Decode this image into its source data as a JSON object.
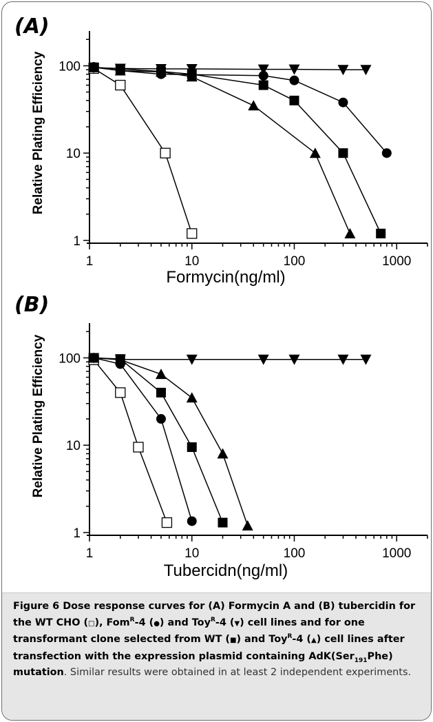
{
  "chart_data": [
    {
      "type": "line",
      "panel_label": "(A)",
      "xlabel": "Formycin(ng/ml)",
      "ylabel": "Relative Plating Efficiency",
      "xscale": "log",
      "yscale": "log",
      "xlim": [
        1,
        2000
      ],
      "ylim": [
        1,
        250
      ],
      "xticks": [
        1,
        10,
        100,
        1000
      ],
      "xtick_labels": [
        "1",
        "10",
        "100",
        "1000"
      ],
      "yticks": [
        1,
        10,
        100
      ],
      "ytick_labels": [
        "1",
        "10",
        "100"
      ],
      "grid": false,
      "series": [
        {
          "key": "wt",
          "marker": "square-open",
          "x": [
            1.1,
            2,
            5.5,
            10
          ],
          "y": [
            93,
            60,
            10,
            1.2
          ]
        },
        {
          "key": "fom",
          "marker": "circle",
          "x": [
            1.1,
            2,
            5,
            50,
            100,
            300,
            800
          ],
          "y": [
            97,
            88,
            80,
            77,
            68,
            38,
            10
          ]
        },
        {
          "key": "toy",
          "marker": "triangle-down",
          "x": [
            1.1,
            2,
            5,
            10,
            50,
            100,
            300,
            500
          ],
          "y": [
            95,
            93,
            92,
            92,
            91,
            91,
            90,
            90
          ]
        },
        {
          "key": "wt_transf",
          "marker": "square",
          "x": [
            1.1,
            2,
            5,
            10,
            50,
            100,
            300,
            700
          ],
          "y": [
            96,
            92,
            86,
            80,
            60,
            40,
            10,
            1.2
          ]
        },
        {
          "key": "toy_transf",
          "marker": "triangle-up",
          "x": [
            1.1,
            2,
            5,
            10,
            40,
            160,
            350
          ],
          "y": [
            96,
            88,
            85,
            75,
            35,
            10,
            1.2
          ]
        }
      ]
    },
    {
      "type": "line",
      "panel_label": "(B)",
      "xlabel": "Tubercidn(ng/ml)",
      "ylabel": "Relative Plating Efficiency",
      "xscale": "log",
      "yscale": "log",
      "xlim": [
        1,
        2000
      ],
      "ylim": [
        1,
        250
      ],
      "xticks": [
        1,
        10,
        100,
        1000
      ],
      "xtick_labels": [
        "1",
        "10",
        "100",
        "1000"
      ],
      "yticks": [
        1,
        10,
        100
      ],
      "ytick_labels": [
        "1",
        "10",
        "100"
      ],
      "grid": false,
      "series": [
        {
          "key": "wt",
          "marker": "square-open",
          "x": [
            1.1,
            2,
            3,
            5.7
          ],
          "y": [
            95,
            40,
            9.5,
            1.3
          ]
        },
        {
          "key": "fom",
          "marker": "circle",
          "x": [
            1.1,
            2,
            5,
            10
          ],
          "y": [
            100,
            85,
            20,
            1.35
          ]
        },
        {
          "key": "toy",
          "marker": "triangle-down",
          "x": [
            1.1,
            2,
            10,
            50,
            100,
            300,
            500
          ],
          "y": [
            100,
            96,
            96,
            96,
            96,
            96,
            96
          ]
        },
        {
          "key": "wt_transf",
          "marker": "square",
          "x": [
            1.1,
            2,
            5,
            10,
            20
          ],
          "y": [
            100,
            97,
            40,
            9.5,
            1.3
          ]
        },
        {
          "key": "toy_transf",
          "marker": "triangle-up",
          "x": [
            1.1,
            2,
            5,
            10,
            20,
            35
          ],
          "y": [
            100,
            95,
            65,
            35,
            8,
            1.2
          ]
        }
      ]
    }
  ],
  "caption": {
    "fig_label": "Figure 6",
    "t1": " Dose response curves for (A) Formycin A and (B) tubercidin for the WT CHO (",
    "sym_wt": "□",
    "t2": "), Fom",
    "sup1": "R",
    "t3": "-4 (",
    "sym_fom": "●",
    "t4": ") and Toy",
    "sup2": "R",
    "t5": "-4 (",
    "sym_toy": "▼",
    "t6": ") cell lines and for one transformant clone selected from WT (",
    "sym_wt_transf": "■",
    "t7": ") and Toy",
    "sup3": "R",
    "t8": "-4 (",
    "sym_toy_transf": "▲",
    "t9": ") cell lines after transfection with the expression plasmid containing AdK(Ser",
    "sub": "191",
    "t10": "Phe) mutation",
    "rest": ". Similar results were obtained in at least 2 independent experiments."
  }
}
